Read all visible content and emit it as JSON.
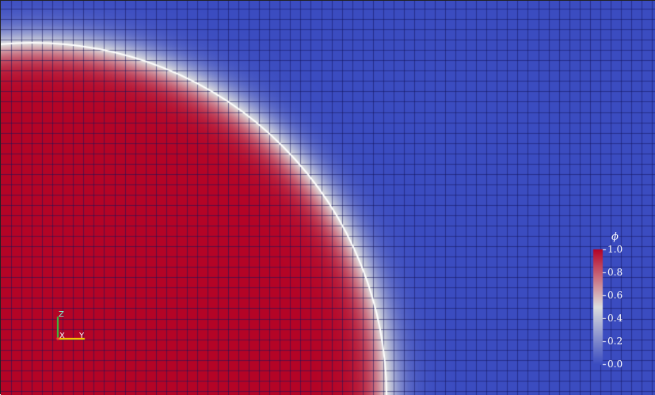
{
  "scene": {
    "field_name": "phi",
    "colormap": [
      "#3b4cc0",
      "#dddddd",
      "#b40426"
    ],
    "interface_level": 0.5,
    "interface_color": "#ffffff",
    "mesh_color": "#1a1a6e"
  },
  "colorbar": {
    "title": "ϕ",
    "ticks": [
      "1.0",
      "0.8",
      "0.6",
      "0.4",
      "0.2",
      "0.0"
    ],
    "range": [
      0.0,
      1.0
    ]
  },
  "axes_triad": {
    "z_label": "Z",
    "x_label": "X",
    "y_label": "Y",
    "z_color": "#2ecc40",
    "x_color": "#ffdc00",
    "y_color": "#ffdc00"
  }
}
